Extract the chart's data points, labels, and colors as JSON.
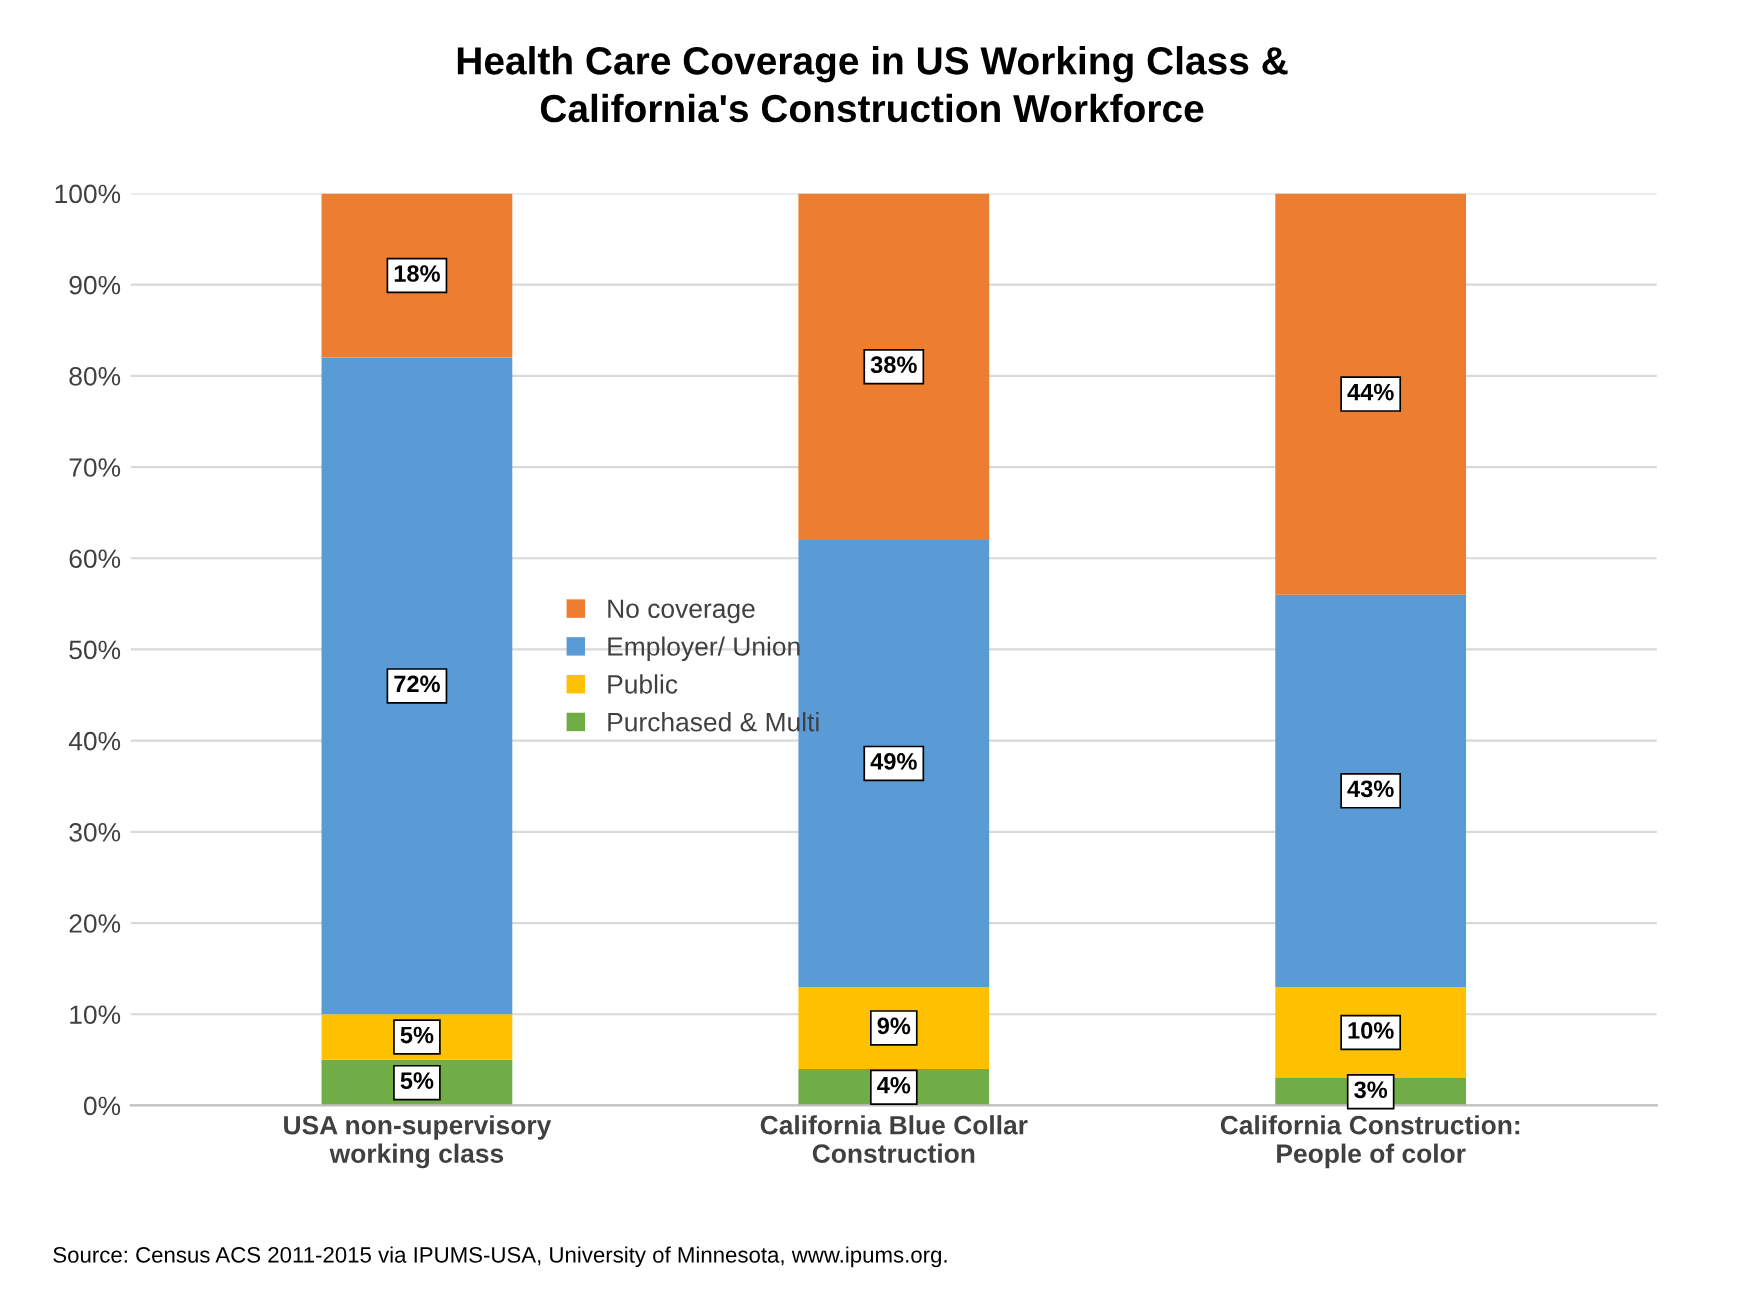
{
  "chart_data": {
    "type": "bar",
    "stacked": true,
    "title": "Health Care Coverage in US Working Class &\nCalifornia's Construction Workforce",
    "categories": [
      "USA non-supervisory\nworking class",
      "California Blue Collar\nConstruction",
      "California Construction:\nPeople of color"
    ],
    "series": [
      {
        "name": "Purchased & Multi",
        "color": "#70ad47",
        "values": [
          5,
          4,
          3
        ],
        "value_labels": [
          "5%",
          "4%",
          "3%"
        ]
      },
      {
        "name": "Public",
        "color": "#ffc000",
        "values": [
          5,
          9,
          10
        ],
        "value_labels": [
          "5%",
          "9%",
          "10%"
        ]
      },
      {
        "name": "Employer/ Union",
        "color": "#5b9bd5",
        "values": [
          72,
          49,
          43
        ],
        "value_labels": [
          "72%",
          "49%",
          "43%"
        ]
      },
      {
        "name": "No coverage",
        "color": "#ed7d31",
        "values": [
          18,
          38,
          44
        ],
        "value_labels": [
          "18%",
          "38%",
          "44%"
        ]
      }
    ],
    "ylim": [
      0,
      100
    ],
    "yticks": [
      {
        "value": 0,
        "label": "0%"
      },
      {
        "value": 10,
        "label": "10%"
      },
      {
        "value": 20,
        "label": "20%"
      },
      {
        "value": 30,
        "label": "30%"
      },
      {
        "value": 40,
        "label": "40%"
      },
      {
        "value": 50,
        "label": "50%"
      },
      {
        "value": 60,
        "label": "60%"
      },
      {
        "value": 70,
        "label": "70%"
      },
      {
        "value": 80,
        "label": "80%"
      },
      {
        "value": 90,
        "label": "90%"
      },
      {
        "value": 100,
        "label": "100%"
      }
    ],
    "grid": "y",
    "legend": "center left",
    "annotations": [
      "Source: Census ACS 2011-2015 via IPUMS-USA, University of Minnesota, www.ipums.org."
    ]
  }
}
